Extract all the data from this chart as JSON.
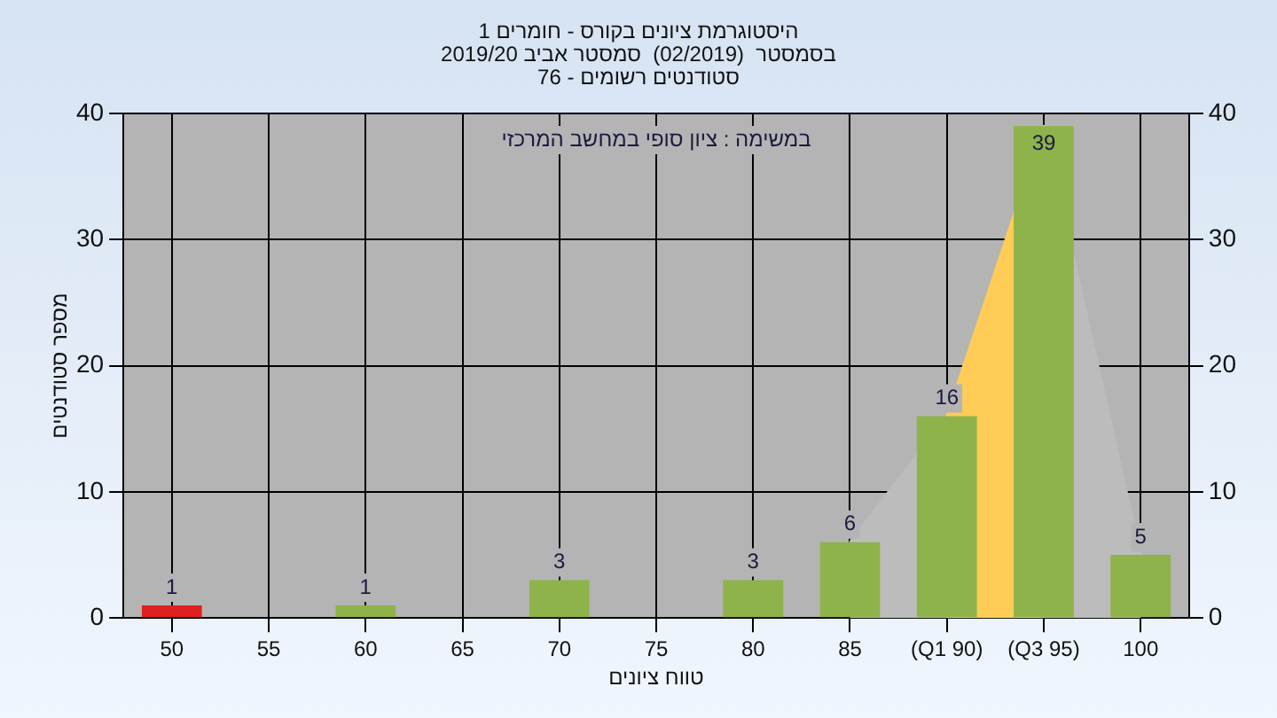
{
  "chart_data": {
    "type": "bar",
    "title": "היסטוגרמת ציונים בקורס - חומרים 1",
    "subtitle": "בסמסטר  (02/2019)  סמסטר אביב 2019/20",
    "xlabel": "טווח ציונים",
    "ylabel": "מספר סטודנטים",
    "annotations": [
      "סטודנטים רשומים - 76",
      "במשימה : ציון סופי במחשב המרכזי"
    ],
    "categories": [
      "50",
      "55",
      "60",
      "65",
      "70",
      "75",
      "80",
      "85",
      "(Q1 90)",
      "(Q3 95)",
      "100"
    ],
    "series": [
      {
        "type": "area",
        "color": "#bcbcbc",
        "values": [
          null,
          null,
          null,
          null,
          null,
          null,
          null,
          6,
          16,
          39,
          5
        ]
      },
      {
        "type": "area",
        "color": "#ffcc55",
        "values": [
          null,
          null,
          null,
          null,
          null,
          null,
          null,
          null,
          16,
          39,
          null
        ]
      },
      {
        "colors": [
          "#e02020",
          null,
          "#8db34a",
          null,
          "#8db34a",
          null,
          "#8db34a",
          "#8db34a",
          "#8db34a",
          "#8db34a",
          "#8db34a"
        ],
        "values": [
          1,
          null,
          1,
          null,
          3,
          null,
          3,
          6,
          16,
          39,
          5
        ],
        "data_labels": true
      }
    ],
    "ylim": [
      0,
      40
    ],
    "yticks": [
      0,
      10,
      20,
      30,
      40
    ],
    "y2lim": [
      0,
      40
    ],
    "y2ticks": [
      0,
      10,
      20,
      30,
      40
    ],
    "grid": true,
    "legend": false
  }
}
